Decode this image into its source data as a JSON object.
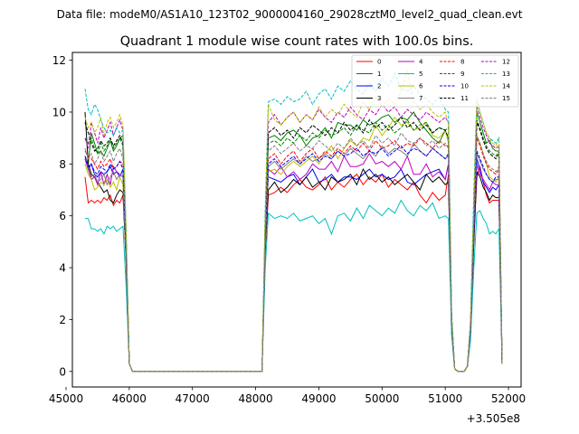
{
  "chart_data": {
    "type": "line",
    "suptitle": "Data file: modeM0/AS1A10_123T02_9000004160_29028cztM0_level2_quad_clean.evt",
    "title": "Quadrant 1 module wise count rates with 100.0s bins.",
    "xlabel": "",
    "ylabel": "",
    "x_offset_label": "+3.505e8",
    "xlim": [
      45100,
      52200
    ],
    "ylim": [
      -0.6,
      12.3
    ],
    "xticks": [
      45000,
      46000,
      47000,
      48000,
      49000,
      50000,
      51000,
      52000
    ],
    "yticks": [
      0,
      2,
      4,
      6,
      8,
      10,
      12
    ],
    "grid": false,
    "legend_position": "top-right",
    "x": [
      45300,
      45350,
      45400,
      45450,
      45500,
      45550,
      45600,
      45650,
      45700,
      45750,
      45800,
      45850,
      45900,
      45950,
      46000,
      46050,
      46100,
      48000,
      48050,
      48100,
      48150,
      48200,
      48300,
      48400,
      48500,
      48600,
      48700,
      48800,
      48900,
      49000,
      49100,
      49200,
      49300,
      49400,
      49500,
      49600,
      49700,
      49800,
      49900,
      50000,
      50100,
      50200,
      50300,
      50400,
      50500,
      50600,
      50700,
      50800,
      50900,
      51000,
      51050,
      51100,
      51150,
      51200,
      51250,
      51300,
      51350,
      51400,
      51450,
      51500,
      51550,
      51600,
      51650,
      51700,
      51750,
      51800,
      51850,
      51900
    ],
    "series": [
      {
        "name": "0",
        "color": "#ff0000",
        "dash": "solid"
      },
      {
        "name": "1",
        "color": "#008000",
        "dash": "solid"
      },
      {
        "name": "2",
        "color": "#0000ff",
        "dash": "solid"
      },
      {
        "name": "3",
        "color": "#000000",
        "dash": "solid"
      },
      {
        "name": "4",
        "color": "#bf00bf",
        "dash": "solid"
      },
      {
        "name": "5",
        "color": "#00bfbf",
        "dash": "solid"
      },
      {
        "name": "6",
        "color": "#bfbf00",
        "dash": "solid"
      },
      {
        "name": "7",
        "color": "#808080",
        "dash": "solid"
      },
      {
        "name": "8",
        "color": "#ff0000",
        "dash": "dashed"
      },
      {
        "name": "9",
        "color": "#008000",
        "dash": "dashed"
      },
      {
        "name": "10",
        "color": "#0000ff",
        "dash": "dashed"
      },
      {
        "name": "11",
        "color": "#000000",
        "dash": "dashed"
      },
      {
        "name": "12",
        "color": "#bf00bf",
        "dash": "dashed"
      },
      {
        "name": "13",
        "color": "#00bfbf",
        "dash": "dashed"
      },
      {
        "name": "14",
        "color": "#bfbf00",
        "dash": "dashed"
      },
      {
        "name": "15",
        "color": "#808080",
        "dash": "dashed"
      }
    ],
    "series_values": [
      [
        7.5,
        6.5,
        6.6,
        6.5,
        6.6,
        6.5,
        6.7,
        6.6,
        6.8,
        6.4,
        6.6,
        6.5,
        6.8,
        4.5,
        0.3,
        0.0,
        0.0,
        0.0,
        0.0,
        0.0,
        4.5,
        6.8,
        6.9,
        7.1,
        6.9,
        7.2,
        7.4,
        7.1,
        7.0,
        7.2,
        7.5,
        7.0,
        7.3,
        7.1,
        7.4,
        7.6,
        7.2,
        7.5,
        7.3,
        7.6,
        7.1,
        7.4,
        7.2,
        7.0,
        7.3,
        6.8,
        6.5,
        6.9,
        6.6,
        6.8,
        7.6,
        1.6,
        0.1,
        0.0,
        0.0,
        0.0,
        0.2,
        1.5,
        5.0,
        7.5,
        7.9,
        7.3,
        6.8,
        6.5,
        6.6,
        6.6,
        6.6,
        0.3
      ],
      [
        8.3,
        8.0,
        9.2,
        8.8,
        8.4,
        8.5,
        8.3,
        8.6,
        8.9,
        8.5,
        8.7,
        9.0,
        9.1,
        5.1,
        0.3,
        0.0,
        0.0,
        0.0,
        0.0,
        0.0,
        5.5,
        9.0,
        9.1,
        8.9,
        9.2,
        9.3,
        9.1,
        8.7,
        9.0,
        9.1,
        9.4,
        9.0,
        9.6,
        9.5,
        9.5,
        9.3,
        9.7,
        9.5,
        9.6,
        9.8,
        9.9,
        9.6,
        9.8,
        9.7,
        10.0,
        9.6,
        9.3,
        9.0,
        8.8,
        9.3,
        8.9,
        2.1,
        0.1,
        0.0,
        0.0,
        0.0,
        0.2,
        1.8,
        6.0,
        10.0,
        9.6,
        9.2,
        8.8,
        8.9,
        8.6,
        8.5,
        8.5,
        0.3
      ],
      [
        8.2,
        7.8,
        8.0,
        7.6,
        7.5,
        7.7,
        7.6,
        7.7,
        7.9,
        7.6,
        7.7,
        7.5,
        7.8,
        4.6,
        0.3,
        0.0,
        0.0,
        0.0,
        0.0,
        0.0,
        4.9,
        7.5,
        7.4,
        7.3,
        7.5,
        7.6,
        7.2,
        7.5,
        7.8,
        7.3,
        7.4,
        7.6,
        7.3,
        7.5,
        7.5,
        7.4,
        7.6,
        7.8,
        7.5,
        7.6,
        7.4,
        7.5,
        7.8,
        7.3,
        7.2,
        7.4,
        7.6,
        7.7,
        7.8,
        7.4,
        8.0,
        1.7,
        0.1,
        0.0,
        0.0,
        0.0,
        0.2,
        1.4,
        5.2,
        8.2,
        7.8,
        7.3,
        7.1,
        6.9,
        7.1,
        7.0,
        7.2,
        0.3
      ],
      [
        10.0,
        8.0,
        7.6,
        7.5,
        7.3,
        7.1,
        6.9,
        7.0,
        6.6,
        6.5,
        6.8,
        7.0,
        6.9,
        4.2,
        0.3,
        0.0,
        0.0,
        0.0,
        0.0,
        0.0,
        4.7,
        7.0,
        7.3,
        6.9,
        7.1,
        7.4,
        7.2,
        7.5,
        7.1,
        7.3,
        7.0,
        7.5,
        7.3,
        7.4,
        7.6,
        7.2,
        7.8,
        7.4,
        7.6,
        7.3,
        7.5,
        7.2,
        7.4,
        7.6,
        7.3,
        7.0,
        7.6,
        7.3,
        7.5,
        7.2,
        7.3,
        1.5,
        0.1,
        0.0,
        0.0,
        0.0,
        0.2,
        1.4,
        4.8,
        7.7,
        7.5,
        7.1,
        6.9,
        6.6,
        6.8,
        6.7,
        6.7,
        0.3
      ],
      [
        8.2,
        7.8,
        7.4,
        7.5,
        7.2,
        7.7,
        7.2,
        7.6,
        7.2,
        7.9,
        7.7,
        7.6,
        7.5,
        4.6,
        0.3,
        0.0,
        0.0,
        0.0,
        0.0,
        0.0,
        4.9,
        7.8,
        7.6,
        7.9,
        7.5,
        7.7,
        7.4,
        7.6,
        8.0,
        7.8,
        7.8,
        8.1,
        7.7,
        8.3,
        7.9,
        7.9,
        8.0,
        8.4,
        8.0,
        8.1,
        7.9,
        8.1,
        7.8,
        8.3,
        7.6,
        7.6,
        8.0,
        7.5,
        7.7,
        7.4,
        8.0,
        1.7,
        0.1,
        0.0,
        0.0,
        0.0,
        0.2,
        1.6,
        5.4,
        8.0,
        7.6,
        7.4,
        7.2,
        7.0,
        7.3,
        7.2,
        7.2,
        0.3
      ],
      [
        5.9,
        5.9,
        5.5,
        5.5,
        5.4,
        5.5,
        5.3,
        5.6,
        5.5,
        5.6,
        5.4,
        5.5,
        5.6,
        3.3,
        0.3,
        0.0,
        0.0,
        0.0,
        0.0,
        0.0,
        3.9,
        6.1,
        5.9,
        6.0,
        5.9,
        6.1,
        5.8,
        5.9,
        6.0,
        5.7,
        5.9,
        5.3,
        6.0,
        6.1,
        5.8,
        6.3,
        5.9,
        6.4,
        6.2,
        6.0,
        6.3,
        6.1,
        6.6,
        6.2,
        6.0,
        6.4,
        6.2,
        6.5,
        5.9,
        6.0,
        5.9,
        1.4,
        0.1,
        0.0,
        0.0,
        0.0,
        0.2,
        1.2,
        3.9,
        6.1,
        6.2,
        5.9,
        5.7,
        5.3,
        5.4,
        5.3,
        5.5,
        0.3
      ],
      [
        8.0,
        7.6,
        7.4,
        7.0,
        7.1,
        7.3,
        7.2,
        7.4,
        7.1,
        7.3,
        7.0,
        7.5,
        7.2,
        4.4,
        0.3,
        0.0,
        0.0,
        0.0,
        0.0,
        0.0,
        4.8,
        7.7,
        7.8,
        7.6,
        7.9,
        8.1,
        7.9,
        8.1,
        8.3,
        8.0,
        8.4,
        8.7,
        8.2,
        8.6,
        8.9,
        8.7,
        9.0,
        8.9,
        9.5,
        9.1,
        9.4,
        9.8,
        9.5,
        9.6,
        9.3,
        9.4,
        9.6,
        9.1,
        9.0,
        9.3,
        8.8,
        1.9,
        0.1,
        0.0,
        0.0,
        0.0,
        0.2,
        1.7,
        5.5,
        9.1,
        8.8,
        8.4,
        8.0,
        7.5,
        7.4,
        7.3,
        7.5,
        0.3
      ],
      [
        8.3,
        7.9,
        7.5,
        7.6,
        7.3,
        7.4,
        7.6,
        7.2,
        7.5,
        7.7,
        7.4,
        7.6,
        7.5,
        4.4,
        0.3,
        0.0,
        0.0,
        0.0,
        0.0,
        0.0,
        4.9,
        7.9,
        8.1,
        7.8,
        8.0,
        8.2,
        8.0,
        8.3,
        8.1,
        8.2,
        8.4,
        8.2,
        8.5,
        8.3,
        8.6,
        8.4,
        8.2,
        8.5,
        8.3,
        8.7,
        8.4,
        8.6,
        8.5,
        8.3,
        8.8,
        8.5,
        8.3,
        8.6,
        8.4,
        8.2,
        8.3,
        1.8,
        0.1,
        0.0,
        0.0,
        0.0,
        0.2,
        1.6,
        5.2,
        8.4,
        8.1,
        7.8,
        7.6,
        7.4,
        7.3,
        7.4,
        7.4,
        0.3
      ],
      [
        8.5,
        8.3,
        8.2,
        8.0,
        7.8,
        8.1,
        7.9,
        8.0,
        8.2,
        7.8,
        7.9,
        8.1,
        8.0,
        4.7,
        0.3,
        0.0,
        0.0,
        0.0,
        0.0,
        0.0,
        5.2,
        8.2,
        8.4,
        8.0,
        8.3,
        8.5,
        8.1,
        8.4,
        8.6,
        8.2,
        8.5,
        8.3,
        8.6,
        8.4,
        8.7,
        8.5,
        8.8,
        8.5,
        8.9,
        8.6,
        8.7,
        8.9,
        8.6,
        8.8,
        8.7,
        9.0,
        8.8,
        8.6,
        8.9,
        8.7,
        8.7,
        1.9,
        0.1,
        0.0,
        0.0,
        0.0,
        0.2,
        1.7,
        5.6,
        9.0,
        8.7,
        8.3,
        8.0,
        7.8,
        7.7,
        7.6,
        7.8,
        0.3
      ],
      [
        9.0,
        8.8,
        9.0,
        8.6,
        8.4,
        8.8,
        8.5,
        8.7,
        8.9,
        8.6,
        8.8,
        9.0,
        8.7,
        5.0,
        0.3,
        0.0,
        0.0,
        0.0,
        0.0,
        0.0,
        5.4,
        8.8,
        8.9,
        8.7,
        9.0,
        8.8,
        9.1,
        8.9,
        9.2,
        9.0,
        9.3,
        9.1,
        9.2,
        9.4,
        9.1,
        9.5,
        9.3,
        9.2,
        9.6,
        9.3,
        9.5,
        9.2,
        9.4,
        9.7,
        9.3,
        9.5,
        9.6,
        9.2,
        9.4,
        9.3,
        9.4,
        2.0,
        0.1,
        0.0,
        0.0,
        0.0,
        0.2,
        1.8,
        5.9,
        9.7,
        9.4,
        9.0,
        8.7,
        8.5,
        8.4,
        8.3,
        8.5,
        0.3
      ],
      [
        8.3,
        7.9,
        8.0,
        7.7,
        7.6,
        7.9,
        7.8,
        7.7,
        8.0,
        7.8,
        7.9,
        8.1,
        7.8,
        4.6,
        0.3,
        0.0,
        0.0,
        0.0,
        0.0,
        0.0,
        5.0,
        8.0,
        8.2,
        7.9,
        8.1,
        8.3,
        8.0,
        8.2,
        8.4,
        8.1,
        8.3,
        8.2,
        8.5,
        8.3,
        8.4,
        8.6,
        8.3,
        8.5,
        8.4,
        8.6,
        8.3,
        8.5,
        8.7,
        8.4,
        8.6,
        8.5,
        8.3,
        8.6,
        8.4,
        8.2,
        8.4,
        1.8,
        0.1,
        0.0,
        0.0,
        0.0,
        0.2,
        1.6,
        5.3,
        8.5,
        8.2,
        7.9,
        7.6,
        7.4,
        7.3,
        7.5,
        7.5,
        0.3
      ],
      [
        9.6,
        9.2,
        8.8,
        8.5,
        8.6,
        8.9,
        8.7,
        8.8,
        9.0,
        8.7,
        8.9,
        9.1,
        8.8,
        5.0,
        0.3,
        0.0,
        0.0,
        0.0,
        0.0,
        0.0,
        5.4,
        9.2,
        9.4,
        9.1,
        9.3,
        9.0,
        9.4,
        9.2,
        9.5,
        9.3,
        9.1,
        9.4,
        9.2,
        9.6,
        9.3,
        9.5,
        9.2,
        9.7,
        9.4,
        9.6,
        9.3,
        9.5,
        9.8,
        9.4,
        9.6,
        9.3,
        9.5,
        9.2,
        9.4,
        9.3,
        9.0,
        2.0,
        0.1,
        0.0,
        0.0,
        0.0,
        0.2,
        1.8,
        5.8,
        9.6,
        9.3,
        8.9,
        8.6,
        8.4,
        8.3,
        8.2,
        8.4,
        0.3
      ],
      [
        9.0,
        8.6,
        9.6,
        9.2,
        8.8,
        9.4,
        9.0,
        9.3,
        9.6,
        9.1,
        9.4,
        9.7,
        9.3,
        5.3,
        0.3,
        0.0,
        0.0,
        0.0,
        0.0,
        0.0,
        5.8,
        9.6,
        9.9,
        9.5,
        9.8,
        10.0,
        9.6,
        9.9,
        9.7,
        10.1,
        9.8,
        9.6,
        10.0,
        9.8,
        10.2,
        9.9,
        9.7,
        10.1,
        9.9,
        10.3,
        10.0,
        10.2,
        9.8,
        10.1,
        9.9,
        9.7,
        10.0,
        9.8,
        9.6,
        9.8,
        9.6,
        2.1,
        0.1,
        0.0,
        0.0,
        0.0,
        0.2,
        1.9,
        6.2,
        10.2,
        9.8,
        9.4,
        9.1,
        8.8,
        8.7,
        8.6,
        8.7,
        0.3
      ],
      [
        10.9,
        10.1,
        9.9,
        10.3,
        10.1,
        9.7,
        9.4,
        9.2,
        9.3,
        9.1,
        9.4,
        9.2,
        9.3,
        5.5,
        0.3,
        0.0,
        0.0,
        0.0,
        0.0,
        0.0,
        6.2,
        10.4,
        10.5,
        10.3,
        10.6,
        10.4,
        10.5,
        10.8,
        10.3,
        10.7,
        10.9,
        10.5,
        11.0,
        10.8,
        11.2,
        10.9,
        10.7,
        11.1,
        10.8,
        11.3,
        11.0,
        11.5,
        10.9,
        10.8,
        11.0,
        10.7,
        10.5,
        10.3,
        10.6,
        10.1,
        10.0,
        2.3,
        0.1,
        0.0,
        0.0,
        0.0,
        0.2,
        2.0,
        6.8,
        10.5,
        10.0,
        9.6,
        9.2,
        9.0,
        8.9,
        8.8,
        9.0,
        0.3
      ],
      [
        9.8,
        9.4,
        9.6,
        9.2,
        9.4,
        9.8,
        9.1,
        9.6,
        9.8,
        9.4,
        9.6,
        9.9,
        9.5,
        5.4,
        0.3,
        0.0,
        0.0,
        0.0,
        0.0,
        0.0,
        5.9,
        10.3,
        9.7,
        9.5,
        9.8,
        10.0,
        9.6,
        9.9,
        9.7,
        10.2,
        9.8,
        10.1,
        9.9,
        10.3,
        10.0,
        9.8,
        10.4,
        10.1,
        10.6,
        10.2,
        10.5,
        10.3,
        10.8,
        11.6,
        10.4,
        10.1,
        10.3,
        10.0,
        9.8,
        10.0,
        9.5,
        2.1,
        0.1,
        0.0,
        0.0,
        0.0,
        0.2,
        1.9,
        6.3,
        10.4,
        10.0,
        9.6,
        9.2,
        9.0,
        8.8,
        8.7,
        8.9,
        0.3
      ],
      [
        8.6,
        8.2,
        8.4,
        8.0,
        8.2,
        8.5,
        8.1,
        8.3,
        8.5,
        8.1,
        8.4,
        8.6,
        8.2,
        4.8,
        0.3,
        0.0,
        0.0,
        0.0,
        0.0,
        0.0,
        5.2,
        8.5,
        8.7,
        8.4,
        8.6,
        8.8,
        8.5,
        8.7,
        8.6,
        8.9,
        8.7,
        8.5,
        8.8,
        8.6,
        9.0,
        8.7,
        8.9,
        8.6,
        9.1,
        8.8,
        9.0,
        8.7,
        9.2,
        8.9,
        8.8,
        9.0,
        8.7,
        8.9,
        8.6,
        8.8,
        8.6,
        1.9,
        0.1,
        0.0,
        0.0,
        0.0,
        0.2,
        1.7,
        5.6,
        9.1,
        8.8,
        8.4,
        8.1,
        7.9,
        7.8,
        7.7,
        7.9,
        0.3
      ]
    ]
  }
}
